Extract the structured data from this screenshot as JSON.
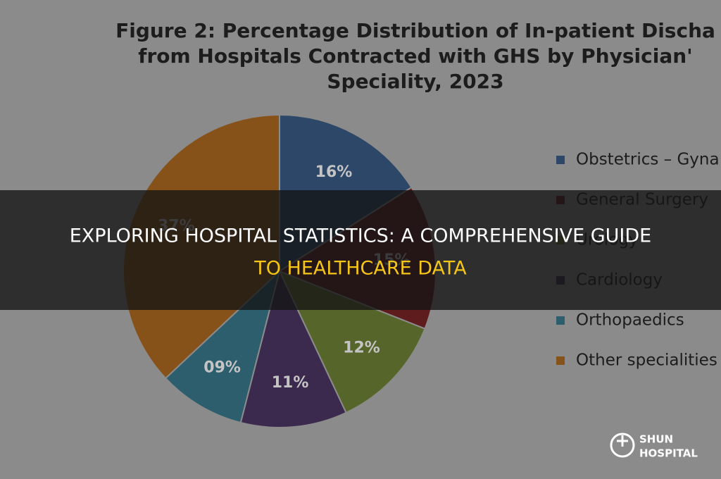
{
  "chart_data": {
    "type": "pie",
    "title": [
      "Figure 2: Percentage Distribution of In-patient Discha",
      "from Hospitals Contracted with GHS by Physician'",
      "Speciality, 2023"
    ],
    "categories": [
      "Obstetrics – Gyna",
      "General Surgery",
      "Urology",
      "Cardiology",
      "Orthopaedics",
      "Other specialities"
    ],
    "values": [
      16,
      15,
      12,
      11,
      9,
      37
    ],
    "value_labels": [
      "16%",
      "15%",
      "12%",
      "11%",
      "09%",
      "37%"
    ],
    "colors": [
      "#2c4768",
      "#5e1c1c",
      "#56662a",
      "#3b2a4e",
      "#2c5e6e",
      "#87511a"
    ]
  },
  "banner": {
    "line1": "EXPLORING HOSPITAL STATISTICS: A COMPREHENSIVE GUIDE",
    "line2": "TO HEALTHCARE DATA"
  },
  "logo": {
    "line1": "SHUN",
    "line2": "HOSPITAL"
  }
}
